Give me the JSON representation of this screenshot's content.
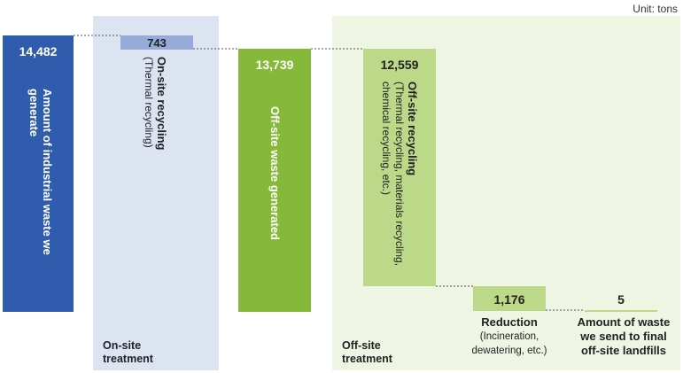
{
  "unit": "Unit: tons",
  "sections": {
    "onsite": "On-site treatment",
    "offsite": "Off-site treatment"
  },
  "generated": {
    "value": "14,482",
    "label": "Amount of industrial waste we generate"
  },
  "onsite_recycling": {
    "value": "743",
    "title": "On-site recycling",
    "sub": "(Thermal recycling)"
  },
  "offsite_generated": {
    "value": "13,739",
    "label": "Off-site waste generated"
  },
  "offsite_recycling": {
    "value": "12,559",
    "title": "Off-site recycling",
    "sub": "(Thermal recycling, materials recycling, chemical recycling, etc.)"
  },
  "reduction": {
    "value": "1,176",
    "title": "Reduction",
    "sub": "(Incineration, dewatering, etc.)"
  },
  "landfill": {
    "value": "5",
    "label": "Amount of waste we send to final off-site landfills"
  },
  "colors": {
    "generated": "#2f5cad",
    "onsite": "#95acd8",
    "onsite_panel": "#dde4f1",
    "offsite_generated": "#86b93a",
    "offsite_light": "#bcd98a",
    "offsite_panel": "#eef5e3"
  }
}
